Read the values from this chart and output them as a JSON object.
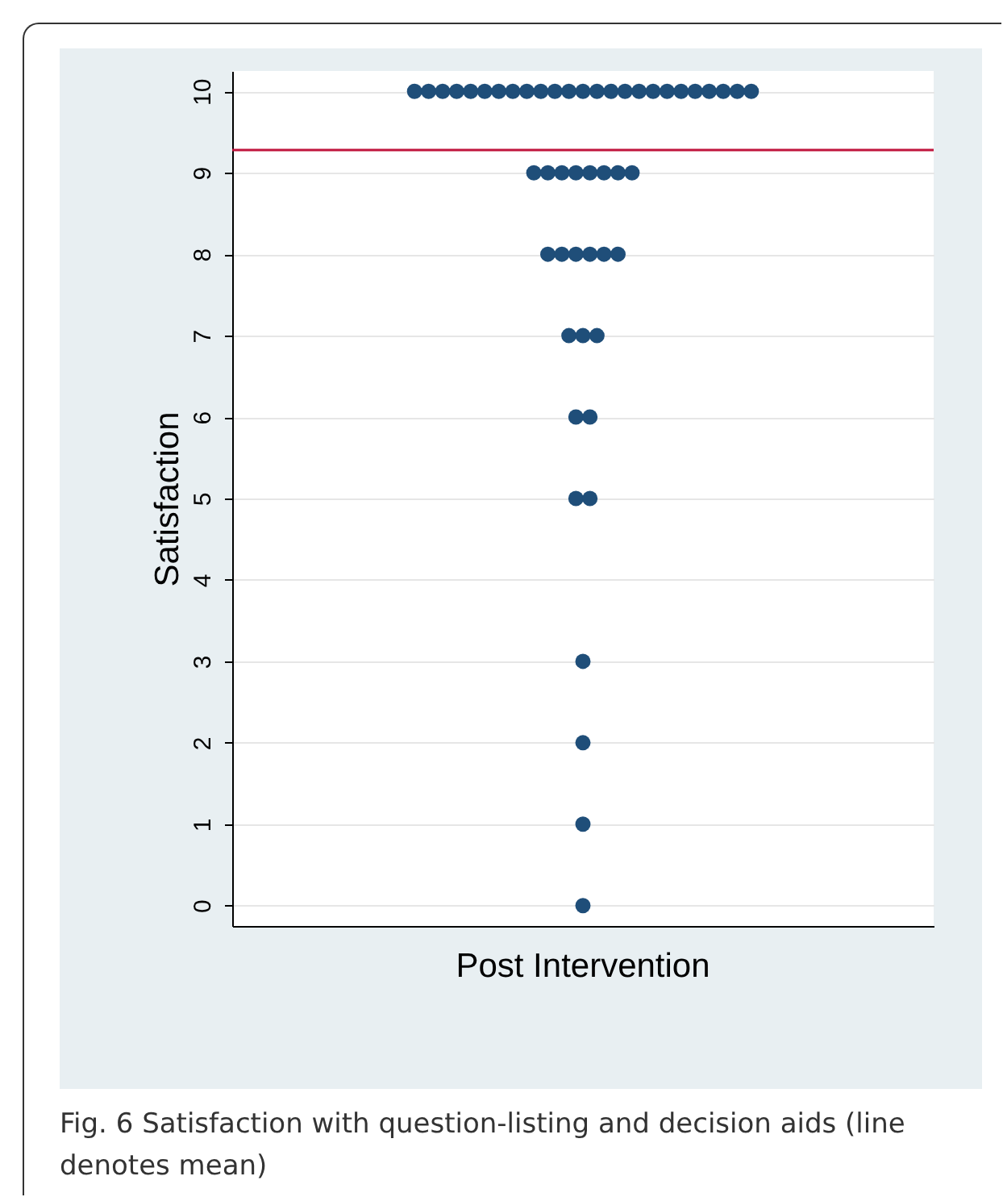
{
  "chart_data": {
    "type": "scatter",
    "categories": [
      "Post Intervention"
    ],
    "ylabel": "Satisfaction",
    "ylim": [
      -0.25,
      10.25
    ],
    "yticks": [
      0,
      1,
      2,
      3,
      4,
      5,
      6,
      7,
      8,
      9,
      10
    ],
    "grid": "y",
    "marker": "circle",
    "legend": false,
    "series": [
      {
        "color": "#1f4e79",
        "x": [
          "Post Intervention",
          "Post Intervention",
          "Post Intervention",
          "Post Intervention",
          "Post Intervention",
          "Post Intervention",
          "Post Intervention",
          "Post Intervention",
          "Post Intervention",
          "Post Intervention",
          "Post Intervention",
          "Post Intervention",
          "Post Intervention",
          "Post Intervention",
          "Post Intervention",
          "Post Intervention",
          "Post Intervention",
          "Post Intervention",
          "Post Intervention",
          "Post Intervention",
          "Post Intervention",
          "Post Intervention",
          "Post Intervention",
          "Post Intervention",
          "Post Intervention",
          "Post Intervention",
          "Post Intervention",
          "Post Intervention",
          "Post Intervention",
          "Post Intervention",
          "Post Intervention",
          "Post Intervention",
          "Post Intervention",
          "Post Intervention",
          "Post Intervention",
          "Post Intervention",
          "Post Intervention",
          "Post Intervention",
          "Post Intervention",
          "Post Intervention",
          "Post Intervention",
          "Post Intervention",
          "Post Intervention",
          "Post Intervention",
          "Post Intervention",
          "Post Intervention",
          "Post Intervention",
          "Post Intervention",
          "Post Intervention",
          "Post Intervention"
        ],
        "values": [
          10,
          10,
          10,
          10,
          10,
          10,
          10,
          10,
          10,
          10,
          10,
          10,
          10,
          10,
          10,
          10,
          10,
          10,
          10,
          10,
          10,
          10,
          10,
          10,
          10,
          9,
          9,
          9,
          9,
          9,
          9,
          9,
          9,
          8,
          8,
          8,
          8,
          8,
          8,
          7,
          7,
          7,
          6,
          6,
          5,
          5,
          3,
          2,
          1,
          0
        ]
      }
    ],
    "ref_lines": [
      {
        "axis": "y",
        "value": 9.28,
        "color": "#c0143c"
      }
    ],
    "annotations": [
      "Fig. 6 Satisfaction with question-listing and decision aids (line denotes mean)"
    ]
  }
}
